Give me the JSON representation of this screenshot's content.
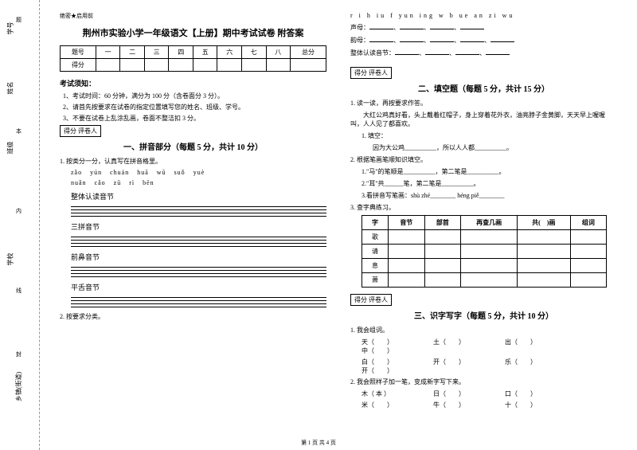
{
  "sidebar": {
    "items": [
      "学号",
      "姓名",
      "班级",
      "",
      "学校",
      "",
      "乡镇(街道)"
    ],
    "dashes": [
      "题",
      "本",
      "内",
      "线",
      "封"
    ]
  },
  "header_tag": "绝密★启用前",
  "title": "荆州市实验小学一年级语文【上册】期中考试试卷 附答案",
  "score_headers": [
    "题号",
    "一",
    "二",
    "三",
    "四",
    "五",
    "六",
    "七",
    "八",
    "总分"
  ],
  "score_row_label": "得分",
  "notice": {
    "title": "考试须知：",
    "items": [
      "1、考试时间：60 分钟，满分为 100 分（含卷面分 3 分）。",
      "2、请首先按要求在试卷的指定位置填写您的姓名、班级、学号。",
      "3、不要在试卷上乱涂乱画，卷面不整洁扣 3 分。"
    ]
  },
  "section_box": "得分  评卷人",
  "section1": {
    "title": "一、拼音部分（每题 5 分，共计 10 分）",
    "q1": "1. 按类分一分，认真写在拼音格里。",
    "pinyin1": [
      "zǎo",
      "yún",
      "chuán",
      "huā",
      "wū",
      "suǒ",
      "yuè"
    ],
    "pinyin2": [
      "nuǎn",
      "cǎo",
      "zū",
      "rì",
      "bēn"
    ],
    "categories": [
      "整体认读音节",
      "三拼音节",
      "前鼻音节",
      "平舌音节"
    ],
    "q2": "2. 按要求分类。"
  },
  "col2_pinyin": "r i  h  iu  f  yun  ing  w  b  ue  an  zi  wu",
  "col2_labels": [
    "声母：",
    "韵母：",
    "整体认读音节："
  ],
  "section2": {
    "title": "二、填空题（每题 5 分，共计 15 分）",
    "q1": "1. 读一读，再按要求作答。",
    "text": "　　大红公鸡真好看，头上戴着红帽子，身上穿着花外衣，油亮脖子金黄脚，天天早上喔喔叫，人人见了都喜欢。",
    "q1a": "1. 填空：",
    "q1b": "因为大公鸡__________，所以人人都__________。",
    "q2": "2. 根据笔画笔顺知识填空。",
    "q2a": "1.\"马\"的笔顺是__________，第二笔是__________。",
    "q2b": "2.\"耳\"共______笔，第二笔是__________。",
    "q2c": "3.看拼音写笔画：shù zhé________  héng piě________",
    "q3": "3. 查字典练习。",
    "char_headers": [
      "字",
      "音节",
      "部首",
      "再查几画",
      "共(　)画",
      "组词"
    ],
    "char_rows": [
      "歌",
      "请",
      "息",
      "萧"
    ]
  },
  "section3": {
    "title": "三、识字写字（每题 5 分，共计 10 分）",
    "q1": "1. 我会组词。",
    "words1": [
      [
        "天（　　）",
        "土（　　）",
        "出（　　）",
        "中（　　）"
      ],
      [
        "白（　　）",
        "开（　　）",
        "乐（　　）",
        "开（　　）"
      ]
    ],
    "q2": "2. 我会照样子加一笔，变成新字写下来。",
    "words2": [
      [
        "木（ 本 ）",
        "日（　　）",
        "口（　　）"
      ],
      [
        "米（　　）",
        "牛（　　）",
        "十（　　）"
      ]
    ]
  },
  "footer": "第 1 页 共 4 页"
}
